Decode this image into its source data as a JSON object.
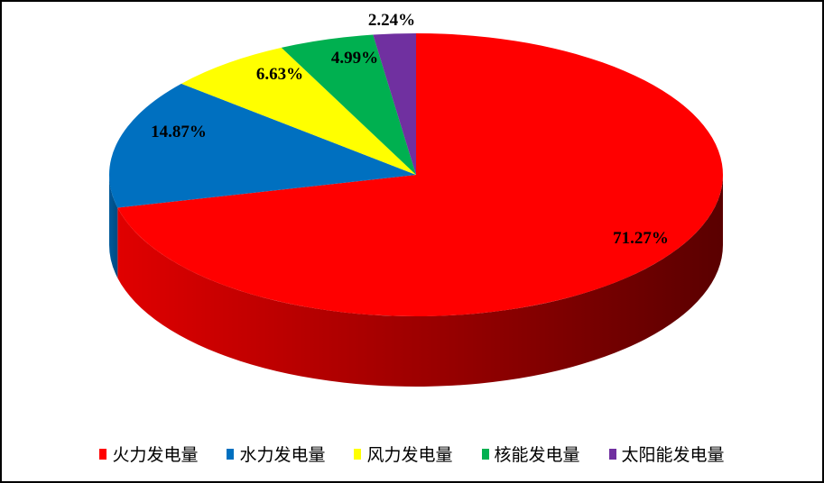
{
  "chart_data": {
    "type": "pie",
    "style": "3d",
    "start": "12 o'clock, clockwise",
    "categories": [
      "火力发电量",
      "水力发电量",
      "风力发电量",
      "核能发电量",
      "太阳能发电量"
    ],
    "values": [
      71.27,
      14.87,
      6.63,
      4.99,
      2.24
    ],
    "labels": [
      "71.27%",
      "14.87%",
      "6.63%",
      "4.99%",
      "2.24%"
    ],
    "colors": [
      "#ff0000",
      "#0070c0",
      "#ffff00",
      "#00b050",
      "#7030a0"
    ],
    "legend_position": "bottom"
  }
}
